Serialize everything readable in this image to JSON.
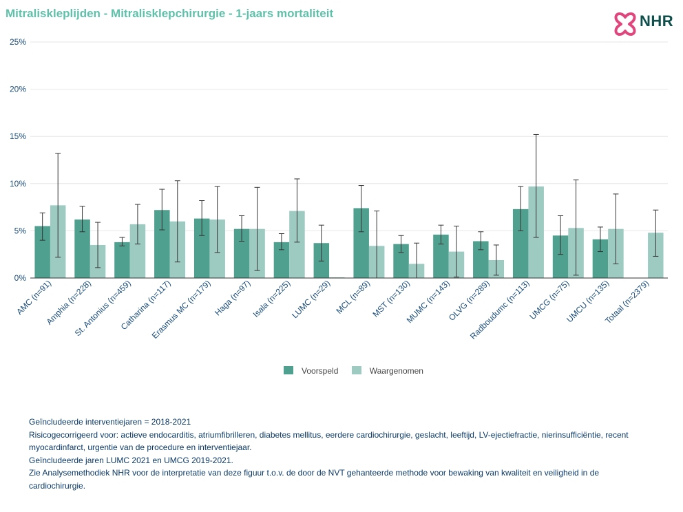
{
  "header": {
    "title": "Mitraliskleplijden - Mitralisklepchirurgie - 1-jaars mortaliteit",
    "logo_text": "NHR"
  },
  "colors": {
    "voorspeld": "#4fa08f",
    "waargenomen": "#9dcbc2",
    "title": "#5fc1aa",
    "logo_pink": "#e0457b",
    "logo_dark": "#0f4f4c",
    "axis_text": "#1a4d7a",
    "notes_text": "#0b3a66"
  },
  "chart_data": {
    "type": "bar",
    "categories": [
      "AMC (n=91)",
      "Amphia (n=228)",
      "St. Antonius (n=459)",
      "Catharina (n=117)",
      "Erasmus MC (n=179)",
      "Haga (n=97)",
      "Isala (n=225)",
      "LUMC (n=29)",
      "MCL (n=89)",
      "MST (n=130)",
      "MUMC (n=143)",
      "OLVG (n=289)",
      "Radboudumc (n=113)",
      "UMCG (n=75)",
      "UMCU (n=135)",
      "Totaal (n=2379)"
    ],
    "series": [
      {
        "name": "Voorspeld",
        "values": [
          5.5,
          6.2,
          3.8,
          7.2,
          6.3,
          5.2,
          3.8,
          3.7,
          7.4,
          3.6,
          4.6,
          3.9,
          7.3,
          4.5,
          4.1,
          null
        ],
        "err_low": [
          4.0,
          4.9,
          3.4,
          5.1,
          4.5,
          3.9,
          3.0,
          1.8,
          4.9,
          2.7,
          3.6,
          3.0,
          5.0,
          2.5,
          2.8,
          null
        ],
        "err_high": [
          6.9,
          7.6,
          4.3,
          9.4,
          8.2,
          6.6,
          4.7,
          5.6,
          9.8,
          4.5,
          5.6,
          4.9,
          9.7,
          6.6,
          5.4,
          null
        ]
      },
      {
        "name": "Waargenomen",
        "values": [
          7.7,
          3.5,
          5.7,
          6.0,
          6.2,
          5.2,
          7.1,
          0.0,
          3.4,
          1.5,
          2.8,
          1.9,
          9.7,
          5.3,
          5.2,
          4.8
        ],
        "err_low": [
          2.2,
          1.1,
          3.6,
          1.7,
          2.7,
          0.8,
          3.8,
          0.0,
          0.0,
          0.0,
          0.1,
          0.3,
          4.3,
          0.3,
          1.5,
          2.3
        ],
        "err_high": [
          13.2,
          5.9,
          7.8,
          10.3,
          9.7,
          9.6,
          10.5,
          0.0,
          7.1,
          3.7,
          5.5,
          3.5,
          15.2,
          10.4,
          8.9,
          7.2
        ]
      }
    ],
    "ylim": [
      0,
      25
    ],
    "yticks": [
      "0%",
      "5%",
      "10%",
      "15%",
      "20%",
      "25%"
    ],
    "ytick_values": [
      0,
      5,
      10,
      15,
      20,
      25
    ],
    "grid": true,
    "legend_position": "bottom-center",
    "error_bars": true
  },
  "notes": [
    "Geïncludeerde interventiejaren = 2018-2021",
    "Risicogecorrigeerd voor: actieve endocarditis, atriumfibrilleren, diabetes mellitus, eerdere cardiochirurgie, geslacht, leeftijd, LV-ejectiefractie, nierinsufficiëntie, recent myocardinfarct, urgentie van de procedure en interventiejaar.",
    "Geïncludeerde jaren LUMC 2021 en UMCG 2019-2021.",
    "Zie Analysemethodiek NHR voor de interpretatie van deze figuur t.o.v. de door de NVT gehanteerde methode voor bewaking van kwaliteit en veiligheid in de cardiochirurgie."
  ]
}
